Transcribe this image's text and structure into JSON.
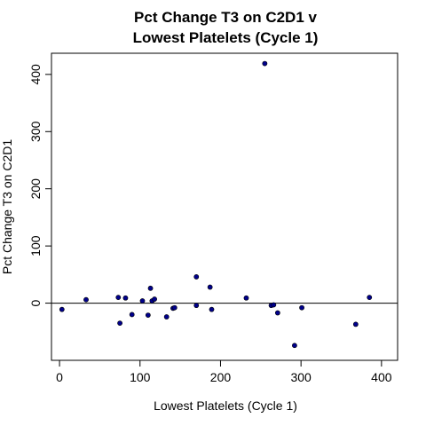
{
  "chart_data": {
    "type": "scatter",
    "title": [
      "Pct Change T3 on C2D1 v",
      "Lowest Platelets (Cycle 1)"
    ],
    "xlabel": "Lowest Platelets (Cycle 1)",
    "ylabel": "Pct Change T3 on C2D1",
    "xlim": [
      -10,
      420
    ],
    "ylim": [
      -100,
      437
    ],
    "xticks": [
      0,
      100,
      200,
      300,
      400
    ],
    "yticks": [
      0,
      100,
      200,
      300,
      400
    ],
    "reference_line_y": 0,
    "point_color": "#00008B",
    "grid": false,
    "series": [
      {
        "x": [
          3,
          33,
          73,
          75,
          82,
          90,
          103,
          110,
          113,
          115,
          118,
          133,
          141,
          143,
          170,
          170,
          187,
          189,
          232,
          255,
          263,
          266,
          271,
          292,
          301,
          368,
          385
        ],
        "y": [
          -11,
          6,
          10,
          -35,
          9,
          -20,
          4,
          -21,
          26,
          4,
          7,
          -24,
          -9,
          -8,
          46,
          -4,
          28,
          -11,
          9,
          419,
          -4,
          -3,
          -17,
          -74,
          -8,
          -37,
          10
        ]
      }
    ]
  }
}
